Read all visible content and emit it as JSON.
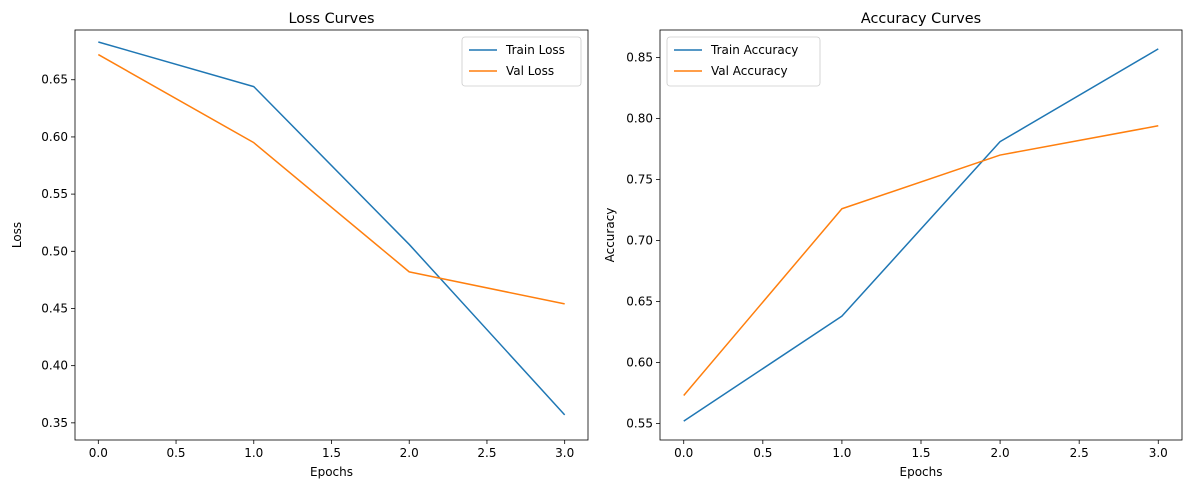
{
  "chart_data": [
    {
      "type": "line",
      "title": "Loss Curves",
      "xlabel": "Epochs",
      "ylabel": "Loss",
      "x": [
        0,
        1,
        2,
        3
      ],
      "xlim": [
        -0.15,
        3.15
      ],
      "ylim": [
        0.335,
        0.6935
      ],
      "xticks": [
        "0.0",
        "0.5",
        "1.0",
        "1.5",
        "2.0",
        "2.5",
        "3.0"
      ],
      "yticks": [
        "0.35",
        "0.40",
        "0.45",
        "0.50",
        "0.55",
        "0.60",
        "0.65"
      ],
      "grid": false,
      "legend": "upper right",
      "series": [
        {
          "name": "Train Loss",
          "color": "#1f77b4",
          "values": [
            0.683,
            0.644,
            0.506,
            0.357
          ]
        },
        {
          "name": "Val Loss",
          "color": "#ff7f0e",
          "values": [
            0.672,
            0.595,
            0.482,
            0.454
          ]
        }
      ]
    },
    {
      "type": "line",
      "title": "Accuracy Curves",
      "xlabel": "Epochs",
      "ylabel": "Accuracy",
      "x": [
        0,
        1,
        2,
        3
      ],
      "xlim": [
        -0.15,
        3.15
      ],
      "ylim": [
        0.5365,
        0.8725
      ],
      "xticks": [
        "0.0",
        "0.5",
        "1.0",
        "1.5",
        "2.0",
        "2.5",
        "3.0"
      ],
      "yticks": [
        "0.55",
        "0.60",
        "0.65",
        "0.70",
        "0.75",
        "0.80",
        "0.85"
      ],
      "grid": false,
      "legend": "upper left",
      "series": [
        {
          "name": "Train Accuracy",
          "color": "#1f77b4",
          "values": [
            0.552,
            0.638,
            0.781,
            0.857
          ]
        },
        {
          "name": "Val Accuracy",
          "color": "#ff7f0e",
          "values": [
            0.573,
            0.726,
            0.77,
            0.794
          ]
        }
      ]
    }
  ]
}
